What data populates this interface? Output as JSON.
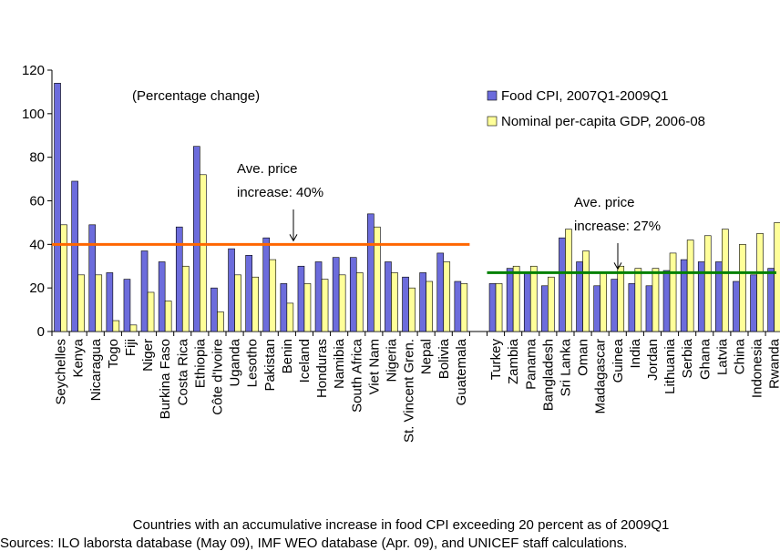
{
  "chart_data": {
    "type": "bar",
    "subtitle": "(Percentage change)",
    "xlabel": "Countries with an accumulative increase in food CPI exceeding 20 percent as of 2009Q1",
    "source": "Sources: ILO laborsta database (May 09), IMF WEO database (Apr. 09), and UNICEF staff calculations.",
    "categories": [
      "Seychelles",
      "Kenya",
      "Nicaragua",
      "Togo",
      "Fiji",
      "Niger",
      "Burkina Faso",
      "Costa Rica",
      "Ethiopia",
      "Côte d'Ivoire",
      "Uganda",
      "Lesotho",
      "Pakistan",
      "Benin",
      "Iceland",
      "Honduras",
      "Namibia",
      "South Africa",
      "Viet Nam",
      "Nigeria",
      "St. Vincent Gren.",
      "Nepal",
      "Bolivia",
      "Guatemala",
      null,
      "Turkey",
      "Zambia",
      "Panama",
      "Bangladesh",
      "Sri Lanka",
      "Oman",
      "Madagascar",
      "Guinea",
      "India",
      "Jordan",
      "Lithuania",
      "Serbia",
      "Ghana",
      "Latvia",
      "China",
      "Indonesia",
      "Rwanda"
    ],
    "series": [
      {
        "name": "Food CPI, 2007Q1-2009Q1",
        "color": "#6c6cdc",
        "values": [
          114,
          69,
          49,
          27,
          24,
          37,
          32,
          48,
          85,
          20,
          38,
          35,
          43,
          22,
          30,
          32,
          34,
          34,
          54,
          32,
          25,
          27,
          36,
          23,
          null,
          22,
          29,
          27,
          21,
          43,
          32,
          21,
          24,
          22,
          21,
          28,
          33,
          32,
          32,
          23,
          26,
          29
        ]
      },
      {
        "name": "Nominal per-capita GDP, 2006-08",
        "color": "#ffff99",
        "values": [
          49,
          26,
          26,
          5,
          3,
          18,
          14,
          30,
          72,
          9,
          26,
          25,
          33,
          13,
          22,
          24,
          26,
          27,
          48,
          27,
          20,
          23,
          32,
          22,
          null,
          22,
          30,
          30,
          25,
          47,
          37,
          27,
          30,
          29,
          29,
          36,
          42,
          44,
          47,
          40,
          45,
          50
        ]
      }
    ],
    "reference_lines": [
      {
        "value": 40,
        "color": "#ff6600",
        "annotation": [
          "Ave. price",
          "increase: 40%"
        ]
      },
      {
        "value": 27,
        "color": "#008000",
        "annotation": [
          "Ave. price",
          "increase: 27%"
        ]
      }
    ],
    "ylim": [
      0,
      120
    ],
    "yticks": [
      0,
      20,
      40,
      60,
      80,
      100,
      120
    ],
    "legend": "top-right"
  }
}
